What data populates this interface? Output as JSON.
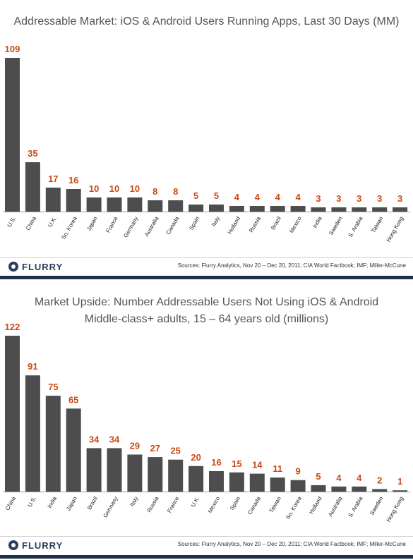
{
  "colors": {
    "bar": "#4d4d4d",
    "value_label": "#cc4a14",
    "footer_rule": "#1f2f4a",
    "title": "#555555"
  },
  "charts": [
    {
      "logo": {
        "icon": "flurry-logo-icon",
        "text": "FLURRY"
      },
      "sources": "Sources: Flurry Analytics, Nov 20 – Dec 20, 2011; CIA World Factbook; IMF; Miller-McCune",
      "chart_data": {
        "type": "bar",
        "title": "Addressable Market: iOS & Android Users Running Apps, Last 30 Days (MM)",
        "categories": [
          "U.S.",
          "China",
          "U.K.",
          "So. Korea",
          "Japan",
          "France",
          "Germany",
          "Australia",
          "Canada",
          "Spain",
          "Italy",
          "Holland",
          "Russia",
          "Brazil",
          "Mexico",
          "India",
          "Sweden",
          "S. Arabia",
          "Taiwan",
          "Hong Kong"
        ],
        "values": [
          109,
          35,
          17,
          16,
          10,
          10,
          10,
          8,
          8,
          5,
          5,
          4,
          4,
          4,
          4,
          3,
          3,
          3,
          3,
          3
        ],
        "ylim": [
          0,
          109
        ],
        "grid": false,
        "legend": "none"
      }
    },
    {
      "logo": {
        "icon": "flurry-logo-icon",
        "text": "FLURRY"
      },
      "sources": "Sources: Flurry Analytics, Nov 20 – Dec 20, 2011; CIA World Factbook; IMF; Miller-McCune",
      "chart_data": {
        "type": "bar",
        "title": "Market Upside: Number Addressable Users Not Using iOS & Android",
        "subtitle": "Middle-class+ adults, 15 – 64 years old (millions)",
        "categories": [
          "China",
          "U.S.",
          "India",
          "Japan",
          "Brazil",
          "Germany",
          "Italy",
          "Russia",
          "France",
          "U.K.",
          "Mexico",
          "Spain",
          "Canada",
          "Taiwan",
          "So. Korea",
          "Holland",
          "Australia",
          "S. Arabia",
          "Sweden",
          "Hong Kong"
        ],
        "values": [
          122,
          91,
          75,
          65,
          34,
          34,
          29,
          27,
          25,
          20,
          16,
          15,
          14,
          11,
          9,
          5,
          4,
          4,
          2,
          1
        ],
        "ylim": [
          0,
          122
        ],
        "grid": false,
        "legend": "none"
      }
    }
  ]
}
